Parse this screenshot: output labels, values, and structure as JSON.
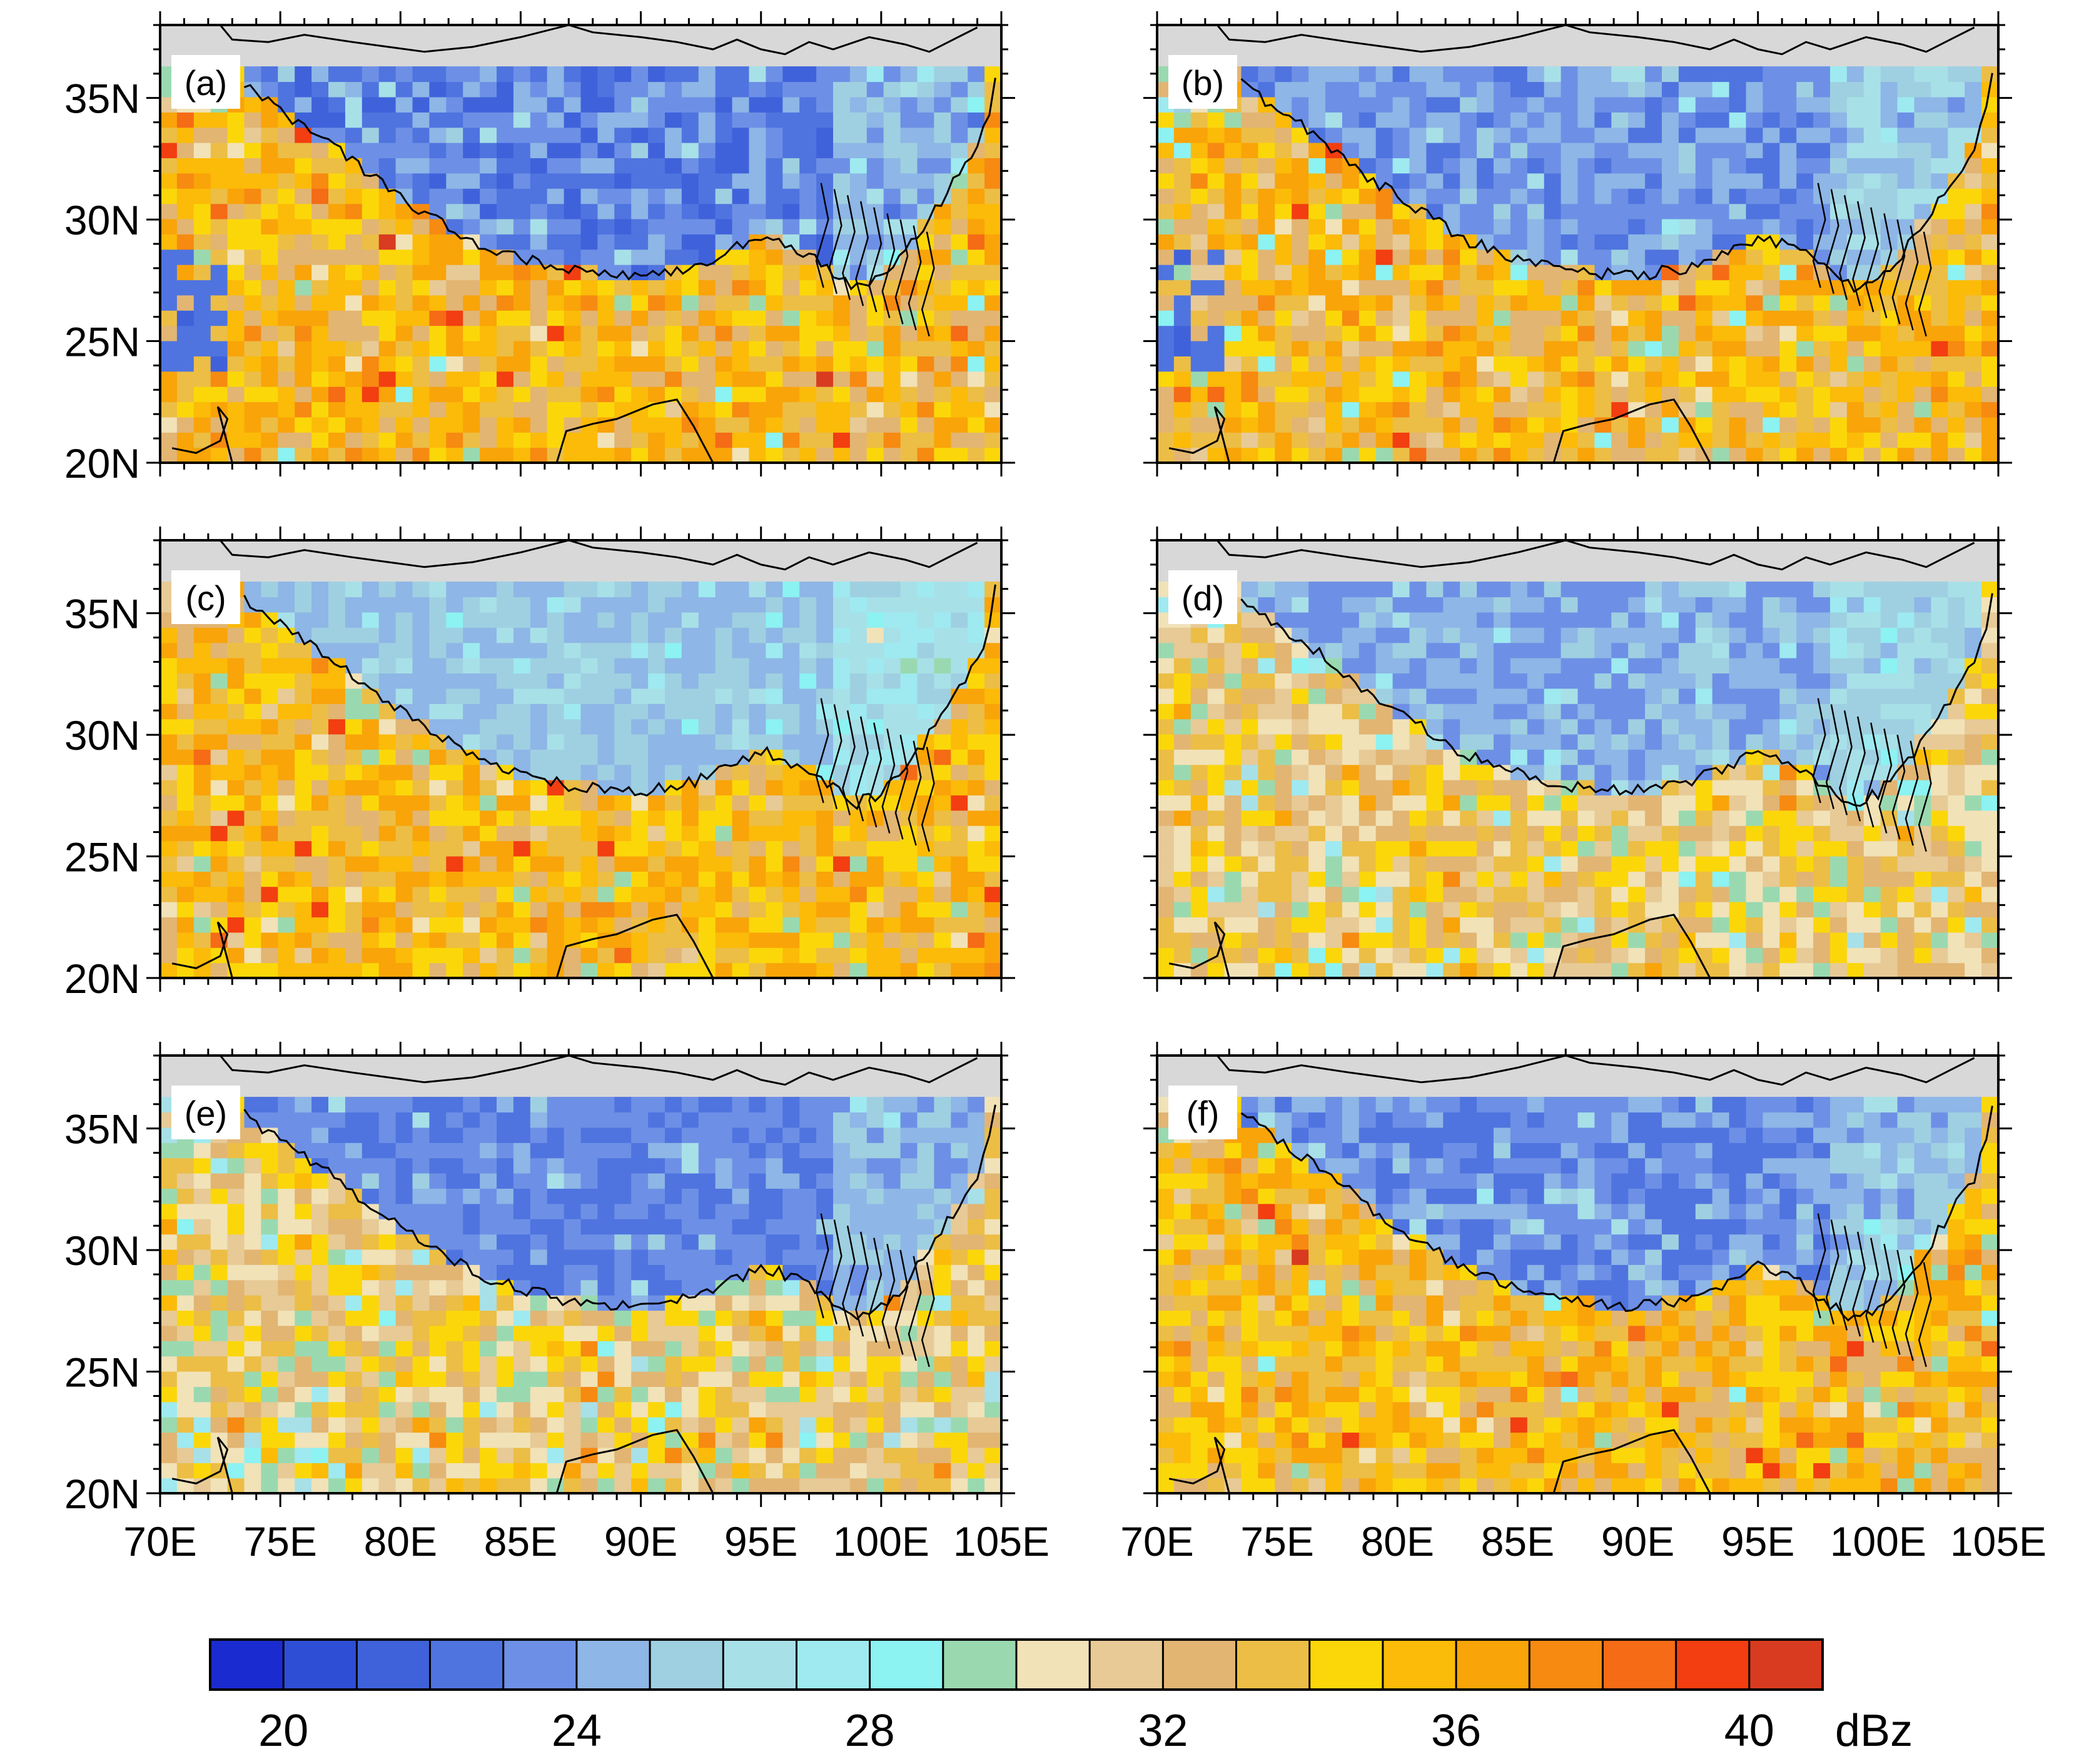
{
  "panels": [
    {
      "label": "(a)",
      "pattern": "a"
    },
    {
      "label": "(b)",
      "pattern": "b"
    },
    {
      "label": "(c)",
      "pattern": "c"
    },
    {
      "label": "(d)",
      "pattern": "d"
    },
    {
      "label": "(e)",
      "pattern": "e"
    },
    {
      "label": "(f)",
      "pattern": "f"
    }
  ],
  "axes": {
    "lat_ticks": [
      "20N",
      "25N",
      "30N",
      "35N"
    ],
    "lon_ticks": [
      "70E",
      "75E",
      "80E",
      "85E",
      "90E",
      "95E",
      "100E",
      "105E"
    ],
    "lat_range": [
      20,
      38
    ],
    "lon_range": [
      70,
      105
    ]
  },
  "colorbar": {
    "unit": "dBz",
    "labels": [
      "20",
      "24",
      "28",
      "32",
      "36",
      "40"
    ],
    "colors": [
      "#1a2ccf",
      "#2f4ed6",
      "#3f62db",
      "#4f74df",
      "#6d90e6",
      "#8eb6e6",
      "#9fd0e1",
      "#a8e0e8",
      "#9eeaf0",
      "#8cf2f2",
      "#9ad9b0",
      "#f1e2b8",
      "#e7ca96",
      "#e2b573",
      "#ecbe45",
      "#fbd70a",
      "#fbbb08",
      "#f9a409",
      "#f78a11",
      "#f56b16",
      "#f23e10",
      "#d83b1f"
    ]
  },
  "map_colors": {
    "out_of_domain": "#d8d8d8",
    "coastline": "#000000",
    "frame": "#000000"
  }
}
